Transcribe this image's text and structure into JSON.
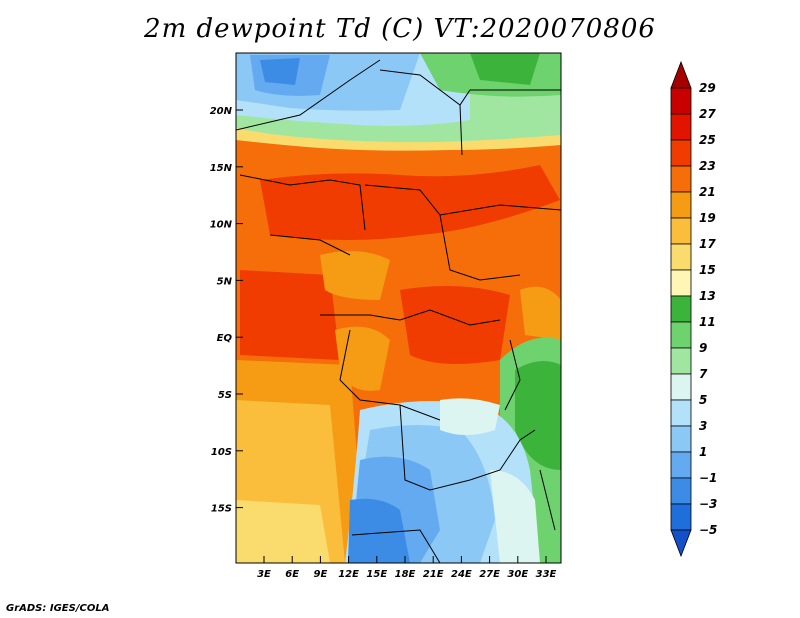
{
  "title": "2m dewpoint Td (C) VT:2020070806",
  "credit": "GrADS: IGES/COLA",
  "map": {
    "lat_labels": [
      "20N",
      "15N",
      "10N",
      "5N",
      "EQ",
      "5S",
      "10S",
      "15S"
    ],
    "lon_labels": [
      "3E",
      "6E",
      "9E",
      "12E",
      "15E",
      "18E",
      "21E",
      "24E",
      "27E",
      "30E",
      "33E"
    ]
  },
  "colorbar": {
    "labels": [
      "29",
      "27",
      "25",
      "23",
      "21",
      "19",
      "17",
      "15",
      "13",
      "11",
      "9",
      "7",
      "5",
      "3",
      "1",
      "−1",
      "−3",
      "−5"
    ],
    "colors": [
      "#a50000",
      "#c80000",
      "#e11400",
      "#f03c00",
      "#f56e0a",
      "#f59b14",
      "#faBe3c",
      "#fadc6e",
      "#fff5b4",
      "#3cb43c",
      "#6ed26e",
      "#a0e6a0",
      "#dcf5f0",
      "#b4e1fa",
      "#8cc8f5",
      "#64aaf0",
      "#3c8ce6",
      "#1e6edc",
      "#1450c8"
    ]
  }
}
